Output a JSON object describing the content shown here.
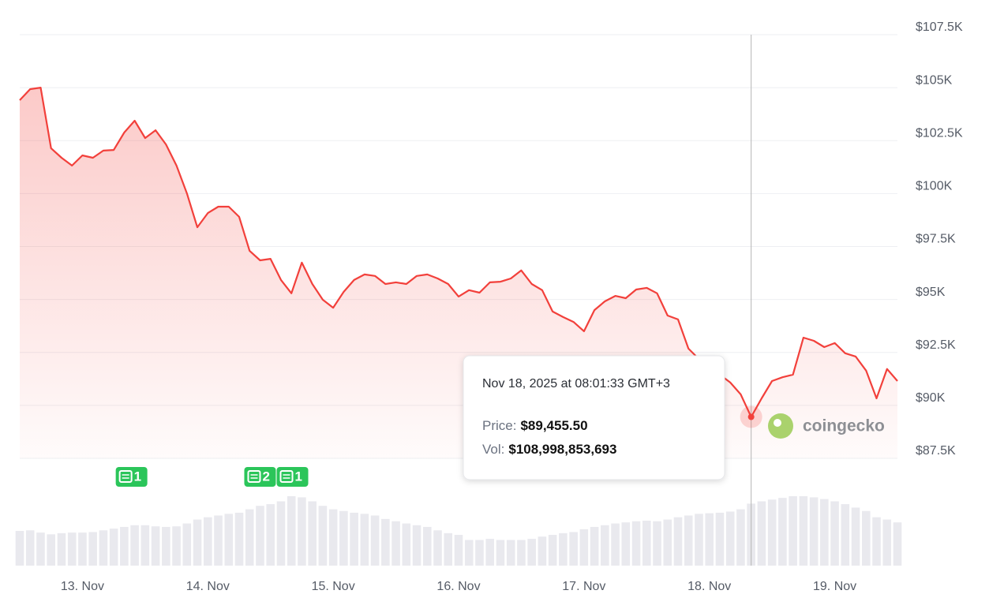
{
  "chart_data": {
    "type": "area",
    "categories": [
      null,
      null,
      null,
      null,
      null,
      null,
      "13. Nov",
      null,
      null,
      null,
      null,
      null,
      null,
      null,
      null,
      null,
      null,
      null,
      "14. Nov",
      null,
      null,
      null,
      null,
      null,
      null,
      null,
      null,
      null,
      null,
      null,
      "15. Nov",
      null,
      null,
      null,
      null,
      null,
      null,
      null,
      null,
      null,
      null,
      null,
      "16. Nov",
      null,
      null,
      null,
      null,
      null,
      null,
      null,
      null,
      null,
      null,
      null,
      "17. Nov",
      null,
      null,
      null,
      null,
      null,
      null,
      null,
      null,
      null,
      null,
      null,
      "18. Nov",
      null,
      null,
      null,
      null,
      null,
      null,
      null,
      null,
      null,
      null,
      null,
      "19. Nov",
      null,
      null,
      null,
      null,
      null,
      null
    ],
    "values": [
      104410,
      104930,
      105000,
      102140,
      101690,
      101320,
      101800,
      101690,
      102030,
      102060,
      102880,
      103440,
      102620,
      102990,
      102320,
      101320,
      100010,
      98410,
      99080,
      99380,
      99380,
      98900,
      97300,
      96850,
      96920,
      95920,
      95290,
      96740,
      95730,
      94990,
      94610,
      95360,
      95920,
      96180,
      96110,
      95730,
      95810,
      95730,
      96110,
      96180,
      95990,
      95730,
      95140,
      95440,
      95320,
      95810,
      95840,
      95990,
      96370,
      95730,
      95440,
      94430,
      94170,
      93940,
      93500,
      94500,
      94910,
      95170,
      95060,
      95470,
      95550,
      95290,
      94240,
      94060,
      92680,
      92190,
      91820,
      91450,
      91080,
      90520,
      89455.5,
      90330,
      91150,
      91330,
      91450,
      93200,
      93050,
      92750,
      92940,
      92460,
      92310,
      91640,
      90330,
      91720,
      91150
    ],
    "color": "#f2403b",
    "volume_values": [
      61000000000.0,
      62000000000.0,
      58000000000.0,
      55000000000.0,
      57000000000.0,
      58000000000.0,
      58000000000.0,
      59000000000.0,
      62000000000.0,
      65000000000.0,
      68000000000.0,
      71000000000.0,
      71000000000.0,
      69000000000.0,
      68000000000.0,
      69000000000.0,
      74000000000.0,
      81000000000.0,
      85000000000.0,
      88000000000.0,
      91000000000.0,
      93000000000.0,
      99000000000.0,
      105000000000.0,
      108000000000.0,
      113000000000.0,
      122000000000.0,
      120000000000.0,
      113000000000.0,
      105000000000.0,
      99000000000.0,
      96000000000.0,
      93000000000.0,
      91000000000.0,
      88000000000.0,
      82000000000.0,
      78000000000.0,
      74000000000.0,
      71000000000.0,
      68000000000.0,
      62000000000.0,
      57000000000.0,
      54000000000.0,
      45000000000.0,
      45000000000.0,
      47000000000.0,
      45000000000.0,
      45000000000.0,
      45000000000.0,
      47000000000.0,
      51000000000.0,
      54000000000.0,
      57000000000.0,
      59000000000.0,
      64000000000.0,
      68000000000.0,
      71000000000.0,
      74000000000.0,
      76000000000.0,
      78000000000.0,
      79000000000.0,
      78000000000.0,
      81000000000.0,
      85000000000.0,
      88000000000.0,
      91000000000.0,
      92000000000.0,
      93000000000.0,
      95000000000.0,
      99000000000.0,
      108998853693,
      113000000000.0,
      116000000000.0,
      119000000000.0,
      122000000000.0,
      122000000000.0,
      120000000000.0,
      117000000000.0,
      113000000000.0,
      108000000000.0,
      102000000000.0,
      96000000000.0,
      85000000000.0,
      81000000000.0,
      76000000000.0
    ],
    "volume_color": "#e9e9ee",
    "ylim": [
      87500,
      107500
    ],
    "yticks": [
      {
        "value": 87500,
        "label": "$87.5K"
      },
      {
        "value": 90000,
        "label": "$90K"
      },
      {
        "value": 92500,
        "label": "$92.5K"
      },
      {
        "value": 95000,
        "label": "$95K"
      },
      {
        "value": 97500,
        "label": "$97.5K"
      },
      {
        "value": 100000,
        "label": "$100K"
      },
      {
        "value": 102500,
        "label": "$102.5K"
      },
      {
        "value": 105000,
        "label": "$105K"
      },
      {
        "value": 107500,
        "label": "$107.5K"
      }
    ],
    "grid": true,
    "news_badges": [
      1,
      2,
      1
    ],
    "tooltip": {
      "title": "Nov 18, 2025 at 08:01:33 GMT+3",
      "price_label": "Price:",
      "price": "$89,455.50",
      "vol_label": "Vol:",
      "vol": "$108,998,853,693"
    },
    "watermark": "coingecko"
  }
}
